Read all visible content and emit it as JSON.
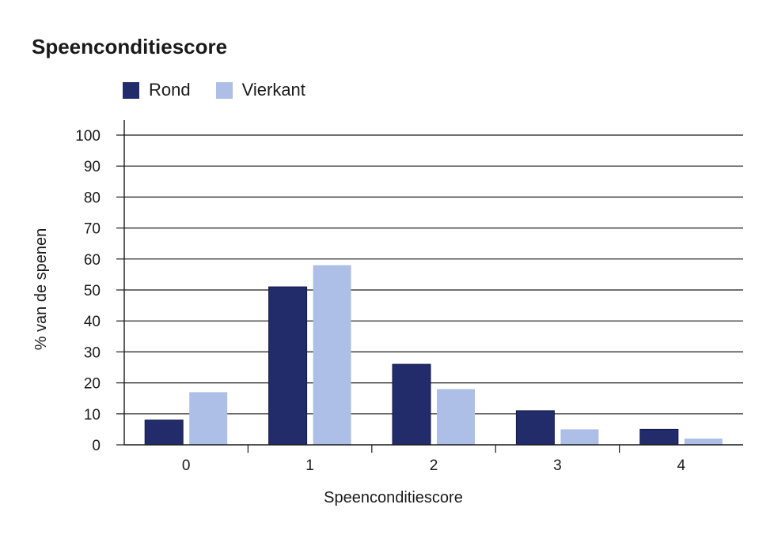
{
  "chart_data": {
    "type": "bar",
    "title": "Speenconditiescore",
    "xlabel": "Speenconditiescore",
    "ylabel": "% van de spenen",
    "categories": [
      "0",
      "1",
      "2",
      "3",
      "4"
    ],
    "series": [
      {
        "name": "Rond",
        "values": [
          8,
          51,
          26,
          11,
          5
        ],
        "color": "#222c6b"
      },
      {
        "name": "Vierkant",
        "values": [
          17,
          58,
          18,
          5,
          2
        ],
        "color": "#adbfe6"
      }
    ],
    "ylim": [
      0,
      100
    ],
    "yticks": [
      0,
      10,
      20,
      30,
      40,
      50,
      60,
      70,
      80,
      90,
      100
    ],
    "grid": true,
    "legend_position": "top-left"
  }
}
